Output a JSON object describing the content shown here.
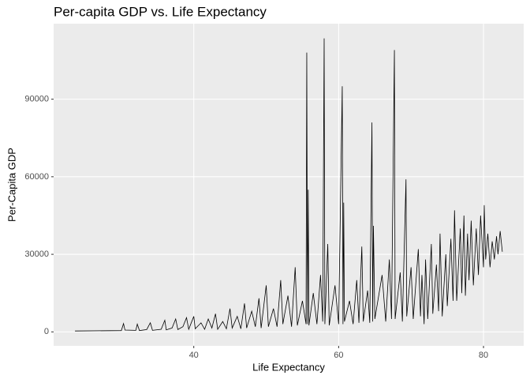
{
  "chart_data": {
    "type": "line",
    "title": "Per-capita GDP vs. Life Expectancy",
    "x_label": "Life Expectancy",
    "y_label": "Per-Capita GDP",
    "color": "#000000",
    "grid": true,
    "xlim": [
      20.65,
      85.55
    ],
    "ylim": [
      -5400,
      119200
    ],
    "xticks": [
      40,
      60,
      80
    ],
    "yticks": [
      0,
      30000,
      60000,
      90000
    ],
    "x": [
      23.6,
      30.0,
      30.3,
      30.5,
      32.0,
      32.2,
      32.5,
      33.5,
      34.0,
      34.3,
      35.5,
      36.0,
      36.2,
      37.0,
      37.5,
      37.8,
      38.5,
      39.0,
      39.3,
      40.0,
      40.2,
      41.0,
      41.5,
      42.0,
      42.5,
      43.0,
      43.3,
      44.0,
      44.5,
      45.0,
      45.3,
      46.0,
      46.5,
      47.0,
      47.3,
      48.0,
      48.5,
      49.0,
      49.3,
      50.0,
      50.3,
      51.0,
      51.5,
      52.0,
      52.3,
      53.0,
      53.5,
      54.0,
      54.3,
      55.0,
      55.5,
      55.6,
      55.7,
      55.8,
      55.9,
      56.5,
      57.0,
      57.5,
      57.8,
      58.0,
      58.1,
      58.5,
      58.7,
      59.5,
      60.0,
      60.5,
      60.6,
      60.7,
      60.8,
      61.5,
      62.0,
      62.5,
      62.8,
      63.2,
      63.4,
      64.0,
      64.3,
      64.6,
      64.7,
      64.8,
      65.0,
      66.0,
      66.5,
      67.0,
      67.3,
      67.7,
      67.8,
      68.5,
      68.8,
      69.3,
      69.4,
      70.0,
      70.3,
      71.0,
      71.3,
      71.5,
      71.8,
      72.0,
      72.3,
      72.8,
      73.0,
      73.5,
      73.8,
      74.0,
      74.3,
      74.8,
      75.0,
      75.5,
      75.8,
      76.0,
      76.3,
      76.8,
      77.0,
      77.3,
      77.5,
      77.8,
      78.0,
      78.3,
      78.6,
      79.0,
      79.3,
      79.6,
      80.0,
      80.1,
      80.3,
      80.6,
      80.9,
      81.2,
      81.5,
      81.8,
      82.0,
      82.3,
      82.6
    ],
    "values": [
      340,
      500,
      3200,
      700,
      600,
      3000,
      500,
      900,
      3500,
      600,
      1000,
      4500,
      800,
      1500,
      5000,
      900,
      2000,
      5500,
      1000,
      6000,
      1200,
      3500,
      1000,
      5000,
      1500,
      7000,
      1000,
      4000,
      1200,
      9000,
      1500,
      6000,
      1200,
      11000,
      1500,
      8000,
      2000,
      13000,
      1500,
      18000,
      2000,
      9000,
      2000,
      20000,
      3000,
      14000,
      2000,
      25000,
      2500,
      12000,
      3000,
      108000,
      3000,
      55000,
      2500,
      15000,
      3000,
      22000,
      4000,
      113500,
      3000,
      34000,
      2500,
      18000,
      3000,
      95000,
      3000,
      50000,
      4000,
      12000,
      3000,
      20000,
      3500,
      33000,
      4000,
      16000,
      3500,
      81000,
      4000,
      41000,
      5000,
      22000,
      4000,
      28000,
      5000,
      109000,
      5000,
      23000,
      4000,
      59000,
      6000,
      25000,
      5000,
      32000,
      6000,
      22000,
      3000,
      28000,
      5000,
      34000,
      7000,
      26000,
      8000,
      38000,
      6000,
      30000,
      10000,
      36000,
      12000,
      47000,
      12000,
      40000,
      15000,
      45000,
      14000,
      38000,
      20000,
      43000,
      18000,
      40000,
      22000,
      45000,
      25000,
      49000,
      28000,
      38000,
      25000,
      35000,
      28000,
      37000,
      30000,
      39000,
      31000
    ]
  }
}
